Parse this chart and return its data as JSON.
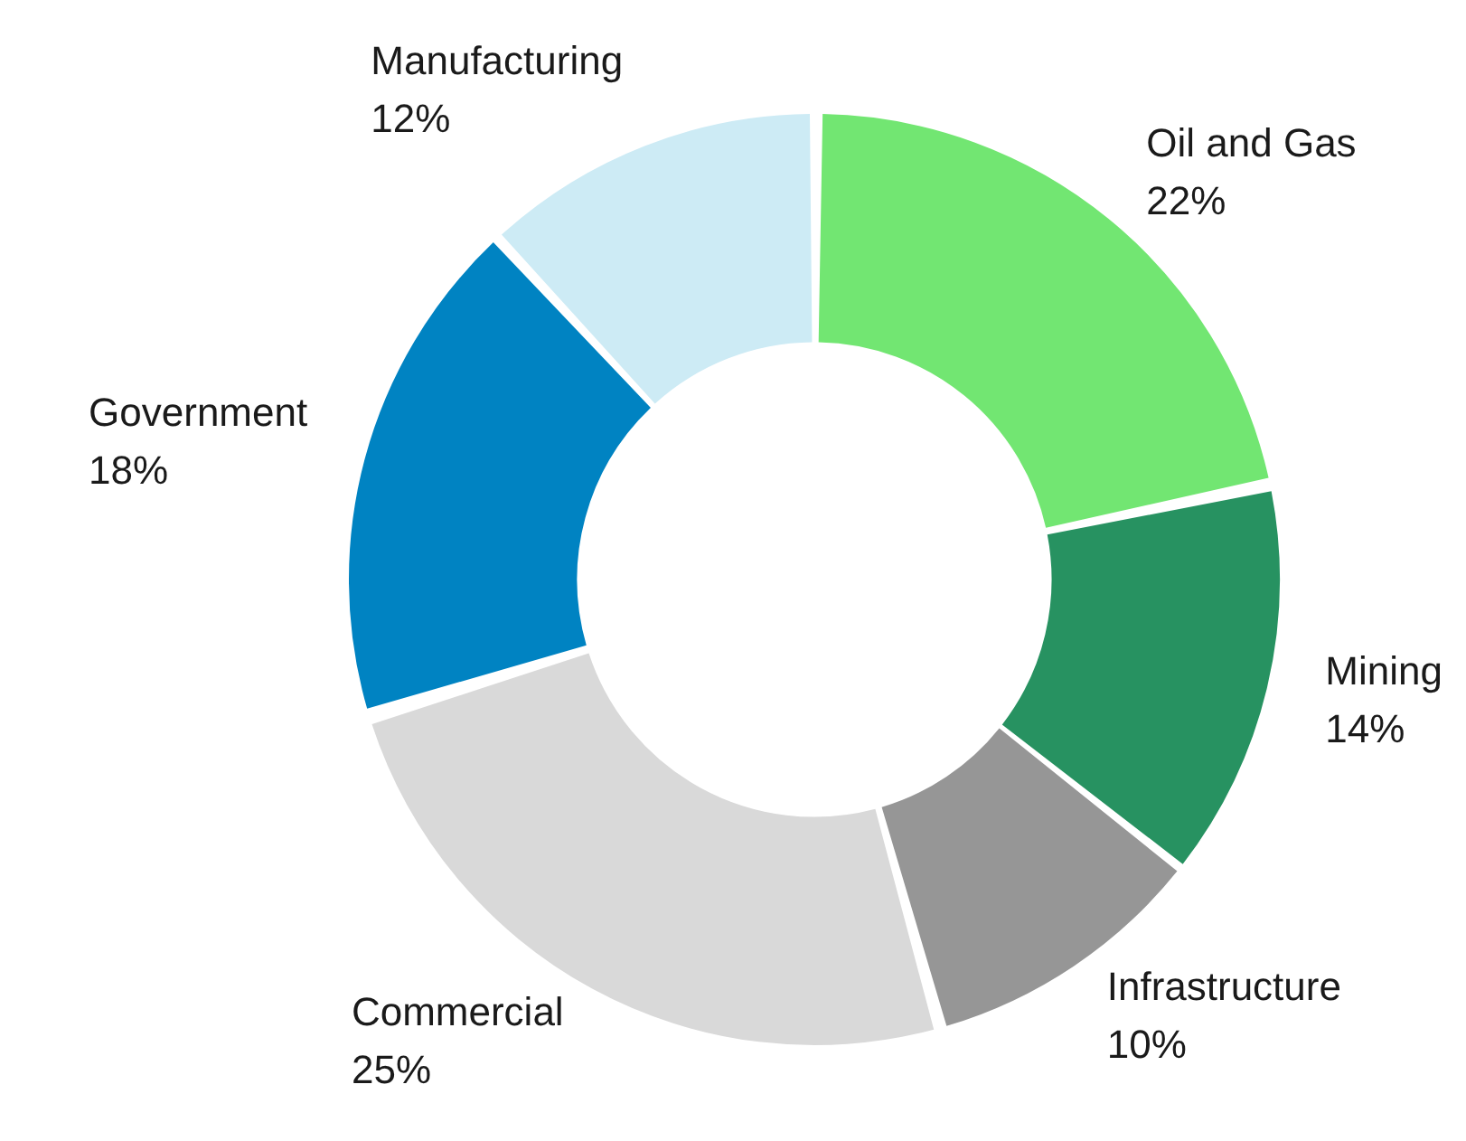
{
  "chart_data": {
    "type": "donut",
    "categories": [
      "Oil and Gas",
      "Mining",
      "Infrastructure",
      "Commercial",
      "Government",
      "Manufacturing"
    ],
    "values": [
      22,
      14,
      10,
      25,
      18,
      12
    ],
    "value_labels": [
      "22%",
      "14%",
      "10%",
      "25%",
      "18%",
      "12%"
    ],
    "colors": [
      "#72e672",
      "#279261",
      "#969696",
      "#d9d9d9",
      "#0083c2",
      "#cdebf5"
    ],
    "legend": false
  }
}
